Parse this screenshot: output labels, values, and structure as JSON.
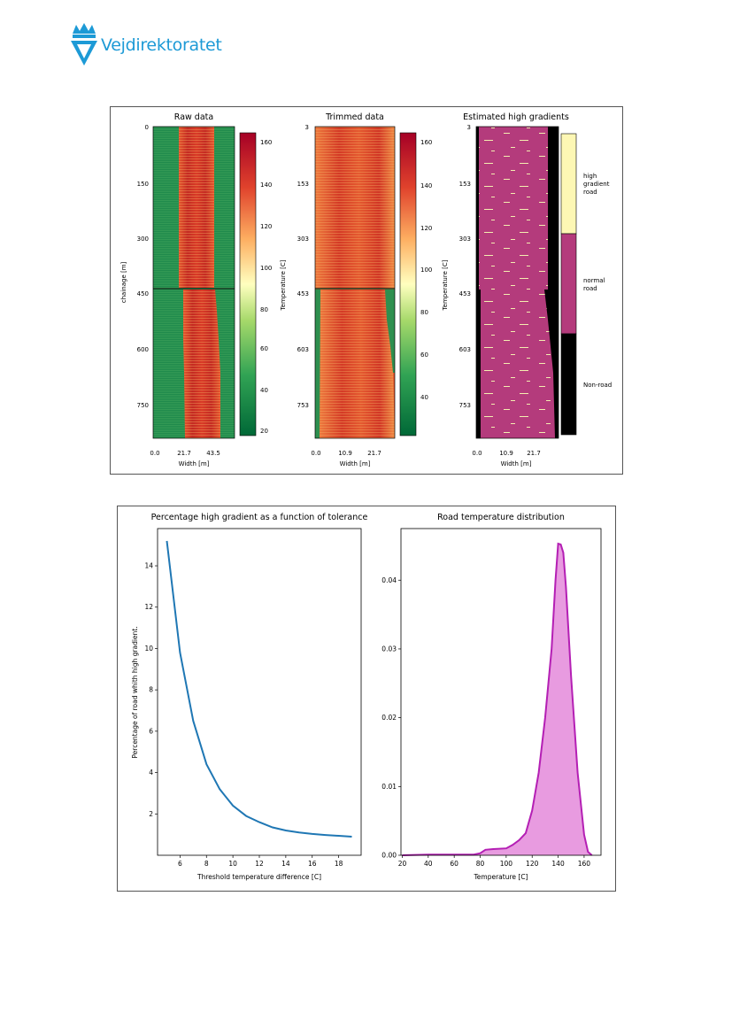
{
  "header": {
    "logo_text": "Vejdirektoratet"
  },
  "colors": {
    "brand": "#1d9ad6",
    "line_series": "#1f77b4",
    "density_line": "#b41fb4",
    "density_fill": "#e89be0"
  },
  "figure1": {
    "panels": [
      {
        "title": "Raw data",
        "xlabel": "Width [m]",
        "ylabel": "chainage [m]",
        "yticks": [
          "0",
          "150",
          "300",
          "450",
          "600",
          "750"
        ],
        "xticks": [
          "0.0",
          "21.7",
          "43.5"
        ],
        "colorbar": {
          "label": "Temperature [C]",
          "ticks": [
            "160",
            "140",
            "120",
            "100",
            "80",
            "60",
            "40",
            "20"
          ],
          "range": [
            17,
            165
          ]
        }
      },
      {
        "title": "Trimmed data",
        "xlabel": "Width [m]",
        "ylabel": "",
        "yticks": [
          "3",
          "153",
          "303",
          "453",
          "603",
          "753"
        ],
        "xticks": [
          "0.0",
          "10.9",
          "21.7"
        ],
        "colorbar": {
          "label": "Temperature [C]",
          "ticks": [
            "160",
            "140",
            "120",
            "100",
            "80",
            "60",
            "40"
          ],
          "range": [
            25,
            165
          ]
        }
      },
      {
        "title": "Estimated high gradients",
        "xlabel": "Width [m]",
        "ylabel": "",
        "yticks": [
          "3",
          "153",
          "303",
          "453",
          "603",
          "753"
        ],
        "xticks": [
          "0.0",
          "10.9",
          "21.7"
        ],
        "legend": [
          "high gradient road",
          "normal road",
          "Non-road"
        ]
      }
    ]
  },
  "chart_data": [
    {
      "type": "line",
      "title": "Percentage high gradient as a function of tolerance",
      "xlabel": "Threshold temperature difference [C]",
      "ylabel": "Percentage of road whith high gradient.",
      "xlim": [
        4.3,
        19.7
      ],
      "ylim": [
        0,
        15.8
      ],
      "xticks": [
        6,
        8,
        10,
        12,
        14,
        16,
        18
      ],
      "yticks": [
        2,
        4,
        6,
        8,
        10,
        12,
        14
      ],
      "x": [
        5,
        6,
        7,
        8,
        9,
        10,
        11,
        12,
        13,
        14,
        15,
        16,
        17,
        18,
        19
      ],
      "y": [
        15.2,
        9.8,
        6.5,
        4.4,
        3.2,
        2.4,
        1.9,
        1.6,
        1.35,
        1.2,
        1.1,
        1.03,
        0.98,
        0.94,
        0.9
      ]
    },
    {
      "type": "area",
      "title": "Road temperature distribution",
      "xlabel": "Temperature [C]",
      "ylabel": "",
      "xlim": [
        19,
        173
      ],
      "ylim": [
        0,
        0.0475
      ],
      "xticks": [
        20,
        40,
        60,
        80,
        100,
        120,
        140,
        160
      ],
      "yticks": [
        0.0,
        0.01,
        0.02,
        0.03,
        0.04
      ],
      "ytick_labels": [
        "0.00",
        "0.01",
        "0.02",
        "0.03",
        "0.04"
      ],
      "x": [
        20,
        40,
        60,
        75,
        80,
        84,
        90,
        100,
        105,
        110,
        115,
        120,
        125,
        130,
        135,
        138,
        140,
        142,
        144,
        146,
        150,
        155,
        160,
        163,
        166
      ],
      "y": [
        0,
        0.0001,
        0.0001,
        0.0001,
        0.0003,
        0.0008,
        0.0009,
        0.001,
        0.0015,
        0.0022,
        0.0032,
        0.0065,
        0.012,
        0.02,
        0.03,
        0.04,
        0.0453,
        0.0452,
        0.044,
        0.039,
        0.026,
        0.012,
        0.003,
        0.0005,
        0
      ]
    }
  ]
}
